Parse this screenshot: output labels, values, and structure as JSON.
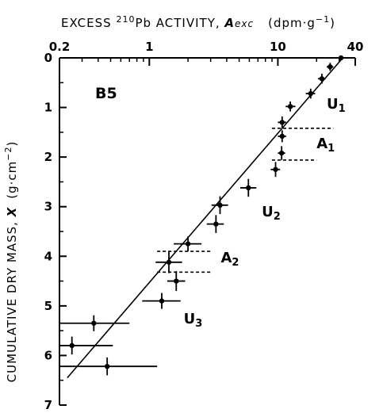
{
  "chart_data": {
    "type": "scatter",
    "title": "",
    "panel_label": "B5",
    "x_axis": {
      "label_prefix": "EXCESS ",
      "label_isotope_mass": "210",
      "label_isotope_rest": "Pb ACTIVITY, ",
      "label_symbol": "A",
      "label_symbol_sub": "exc",
      "label_units": "(dpm·g",
      "label_units_exp": "−1",
      "label_units_close": ")",
      "scale": "log",
      "position": "top",
      "range": [
        0.2,
        40
      ],
      "ticks": [
        0.2,
        1,
        10,
        40
      ],
      "tick_labels": [
        "0.2",
        "1",
        "10",
        "40"
      ]
    },
    "y_axis": {
      "label_main": "CUMULATIVE DRY MASS, ",
      "label_symbol": "X",
      "label_units": "(g·cm",
      "label_units_exp": "−2",
      "label_units_close": ")",
      "scale": "linear",
      "inverted": true,
      "range": [
        0,
        7
      ],
      "ticks": [
        0,
        1,
        2,
        3,
        4,
        5,
        6,
        7
      ],
      "tick_labels": [
        "0",
        "1",
        "2",
        "3",
        "4",
        "5",
        "6",
        "7"
      ]
    },
    "grid": false,
    "series": [
      {
        "points": [
          {
            "x": 31,
            "y": 0.0,
            "xlo": 31,
            "xhi": 31,
            "ylo": 0.0,
            "yhi": 0.0
          },
          {
            "x": 25.5,
            "y": 0.18,
            "xlo": 24,
            "xhi": 27,
            "ylo": 0.1,
            "yhi": 0.26
          },
          {
            "x": 22,
            "y": 0.42,
            "xlo": 20.5,
            "xhi": 23.5,
            "ylo": 0.32,
            "yhi": 0.52
          },
          {
            "x": 18,
            "y": 0.72,
            "xlo": 16.5,
            "xhi": 19.5,
            "ylo": 0.62,
            "yhi": 0.82
          },
          {
            "x": 12.5,
            "y": 0.98,
            "xlo": 11.5,
            "xhi": 13.7,
            "ylo": 0.88,
            "yhi": 1.08
          },
          {
            "x": 10.8,
            "y": 1.3,
            "xlo": 10,
            "xhi": 11.6,
            "ylo": 1.18,
            "yhi": 1.42
          },
          {
            "x": 10.8,
            "y": 1.58,
            "xlo": 10,
            "xhi": 11.6,
            "ylo": 1.46,
            "yhi": 1.7
          },
          {
            "x": 10.7,
            "y": 1.92,
            "xlo": 10,
            "xhi": 11.4,
            "ylo": 1.78,
            "yhi": 2.06
          },
          {
            "x": 9.6,
            "y": 2.25,
            "xlo": 8.8,
            "xhi": 10.4,
            "ylo": 2.1,
            "yhi": 2.4
          },
          {
            "x": 5.9,
            "y": 2.62,
            "xlo": 5.1,
            "xhi": 6.8,
            "ylo": 2.44,
            "yhi": 2.8
          },
          {
            "x": 3.55,
            "y": 2.97,
            "xlo": 3.05,
            "xhi": 4.1,
            "ylo": 2.79,
            "yhi": 3.15
          },
          {
            "x": 3.3,
            "y": 3.35,
            "xlo": 2.8,
            "xhi": 3.8,
            "ylo": 3.17,
            "yhi": 3.53
          },
          {
            "x": 2.0,
            "y": 3.75,
            "xlo": 1.55,
            "xhi": 2.55,
            "ylo": 3.6,
            "yhi": 3.9
          },
          {
            "x": 1.42,
            "y": 4.12,
            "xlo": 1.12,
            "xhi": 1.8,
            "ylo": 3.9,
            "yhi": 4.34
          },
          {
            "x": 1.62,
            "y": 4.5,
            "xlo": 1.38,
            "xhi": 1.9,
            "ylo": 4.3,
            "yhi": 4.7
          },
          {
            "x": 1.25,
            "y": 4.9,
            "xlo": 0.88,
            "xhi": 1.75,
            "ylo": 4.74,
            "yhi": 5.06
          },
          {
            "x": 0.37,
            "y": 5.35,
            "xlo": 0.2,
            "xhi": 0.7,
            "ylo": 5.19,
            "yhi": 5.51
          },
          {
            "x": 0.25,
            "y": 5.8,
            "xlo": 0.2,
            "xhi": 0.52,
            "ylo": 5.62,
            "yhi": 5.98
          },
          {
            "x": 0.47,
            "y": 6.22,
            "xlo": 0.2,
            "xhi": 1.15,
            "ylo": 6.04,
            "yhi": 6.4
          }
        ]
      }
    ],
    "fit_line": [
      {
        "x": 0.23,
        "y": 6.45
      },
      {
        "x": 32,
        "y": 0.0
      }
    ],
    "dashed_lines": [
      {
        "y": 1.42,
        "x_from": 9.0,
        "x_to": 27.0
      },
      {
        "y": 2.06,
        "x_from": 9.0,
        "x_to": 20.0
      },
      {
        "y": 3.9,
        "x_from": 1.15,
        "x_to": 3.1
      },
      {
        "y": 4.32,
        "x_from": 1.15,
        "x_to": 3.1
      }
    ],
    "annotations": [
      {
        "text": "U",
        "sub": "1",
        "x": 24,
        "y": 1.02
      },
      {
        "text": "A",
        "sub": "1",
        "x": 20,
        "y": 1.82
      },
      {
        "text": "U",
        "sub": "2",
        "x": 7.5,
        "y": 3.2
      },
      {
        "text": "A",
        "sub": "2",
        "x": 3.6,
        "y": 4.12
      },
      {
        "text": "U",
        "sub": "3",
        "x": 1.85,
        "y": 5.35
      }
    ]
  }
}
